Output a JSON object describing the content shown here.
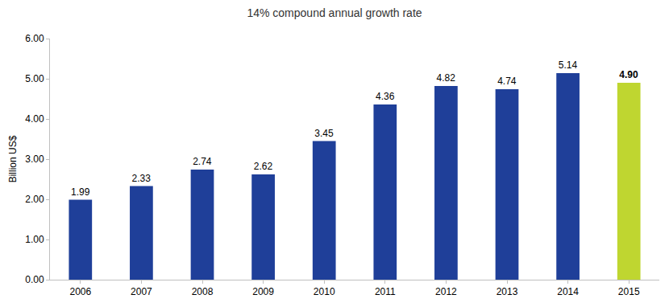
{
  "chart_data": {
    "type": "bar",
    "title": "14% compound annual growth rate",
    "y_label": "Billion US$",
    "categories": [
      "2006",
      "2007",
      "2008",
      "2009",
      "2010",
      "2011",
      "2012",
      "2013",
      "2014",
      "2015"
    ],
    "values": [
      1.99,
      2.33,
      2.74,
      2.62,
      3.45,
      4.36,
      4.82,
      4.74,
      5.14,
      4.9
    ],
    "value_labels": [
      "1.99",
      "2.33",
      "2.74",
      "2.62",
      "3.45",
      "4.36",
      "4.82",
      "4.74",
      "5.14",
      "4.90"
    ],
    "colors": [
      "#1f3f99",
      "#1f3f99",
      "#1f3f99",
      "#1f3f99",
      "#1f3f99",
      "#1f3f99",
      "#1f3f99",
      "#1f3f99",
      "#1f3f99",
      "#bfd630"
    ],
    "ylim": [
      0,
      6
    ],
    "yticks": [
      {
        "value": 0,
        "label": "0.00"
      },
      {
        "value": 1,
        "label": "1.00"
      },
      {
        "value": 2,
        "label": "2.00"
      },
      {
        "value": 3,
        "label": "3.00"
      },
      {
        "value": 4,
        "label": "4.00"
      },
      {
        "value": 5,
        "label": "5.00"
      },
      {
        "value": 6,
        "label": "6.00"
      }
    ],
    "grid": false,
    "data_labels": true
  }
}
